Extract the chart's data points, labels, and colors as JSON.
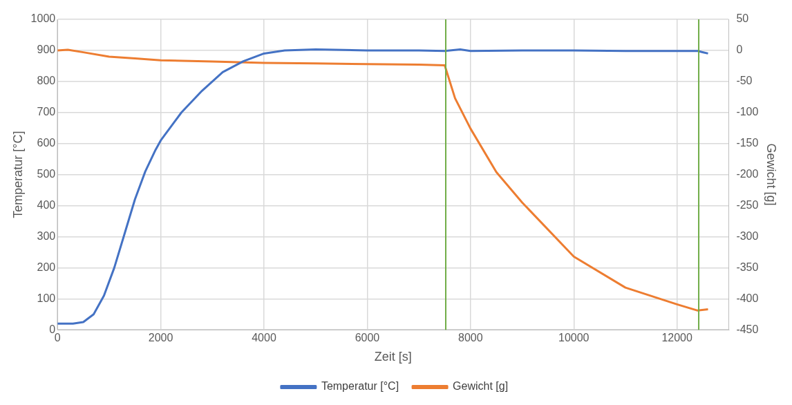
{
  "chart_data": {
    "type": "line",
    "xlabel": "Zeit [s]",
    "ylabel": "Temperatur [°C]",
    "y2label": "Gewicht [g]",
    "xlim": [
      0,
      13000
    ],
    "xticks": [
      0,
      2000,
      4000,
      6000,
      8000,
      10000,
      12000
    ],
    "ylim": [
      0,
      1000
    ],
    "yticks": [
      0,
      100,
      200,
      300,
      400,
      500,
      600,
      700,
      800,
      900,
      1000
    ],
    "y2lim": [
      -450,
      50
    ],
    "y2ticks": [
      -450,
      -400,
      -350,
      -300,
      -250,
      -200,
      -150,
      -100,
      -50,
      0,
      50
    ],
    "grid": true,
    "legend": "bottom",
    "marker": "none",
    "line_style": "solid",
    "ref_lines": [
      {
        "axis": "x",
        "value": 7520,
        "color": "#70ad47"
      },
      {
        "axis": "x",
        "value": 12420,
        "color": "#70ad47"
      }
    ],
    "series": [
      {
        "name": "Temperatur [°C]",
        "color": "#4472c4",
        "x": [
          0,
          300,
          500,
          700,
          900,
          1100,
          1300,
          1500,
          1700,
          1900,
          2000,
          2400,
          2800,
          3200,
          3600,
          4000,
          4400,
          5000,
          6000,
          7000,
          7500,
          7800,
          8000,
          9000,
          10000,
          11000,
          12400,
          12600
        ],
        "values": [
          20,
          20,
          25,
          50,
          110,
          200,
          310,
          420,
          510,
          580,
          610,
          700,
          770,
          830,
          865,
          890,
          900,
          903,
          900,
          900,
          898,
          903,
          898,
          900,
          900,
          898,
          898,
          890
        ]
      },
      {
        "name": "Gewicht [g]",
        "color": "#ed7d31",
        "axis": "y2",
        "x": [
          0,
          200,
          500,
          1000,
          1500,
          2000,
          3000,
          4000,
          5000,
          6000,
          7000,
          7500,
          7700,
          8000,
          8500,
          9000,
          10000,
          11000,
          12000,
          12400,
          12600
        ],
        "values": [
          0,
          1,
          -3,
          -10,
          -13,
          -16,
          -18,
          -20,
          -21,
          -22,
          -23,
          -24,
          -77,
          -126,
          -196,
          -245,
          -332,
          -382,
          -409,
          -419,
          -417
        ]
      }
    ]
  }
}
